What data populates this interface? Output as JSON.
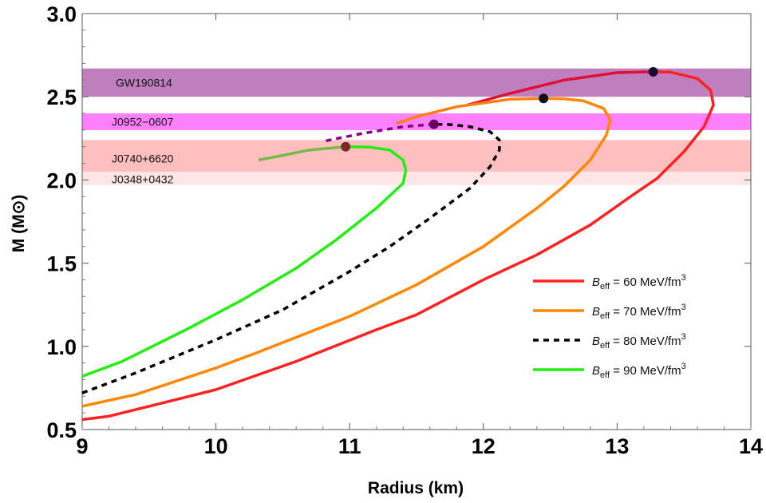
{
  "chart_data": {
    "type": "line",
    "xlabel": "Radius (km)",
    "ylabel": "M (M⊙)",
    "xlim": [
      9,
      14
    ],
    "ylim": [
      0.5,
      3.0
    ],
    "xticks": [
      9,
      10,
      11,
      12,
      13,
      14
    ],
    "xtick_labels": [
      "9",
      "10",
      "11",
      "12",
      "13",
      "14"
    ],
    "yticks": [
      0.5,
      1.0,
      1.5,
      2.0,
      2.5,
      3.0
    ],
    "ytick_labels": [
      "0.5",
      "1.0",
      "1.5",
      "2.0",
      "2.5",
      "3.0"
    ],
    "bands": [
      {
        "name": "GW190814",
        "label": "GW190814",
        "ymin": 2.5,
        "ymax": 2.67,
        "color": "#bf7fbf"
      },
      {
        "name": "J0952-0607",
        "label": "J0952−0607",
        "ymin": 2.3,
        "ymax": 2.4,
        "color": "#ff80ff"
      },
      {
        "name": "J0740+6620",
        "label": "J0740+6620",
        "ymin": 2.05,
        "ymax": 2.24,
        "color": "#ffbfbf"
      },
      {
        "name": "J0348+0432",
        "label": "J0348+0432",
        "ymin": 1.97,
        "ymax": 2.05,
        "color": "#ffe5e5"
      }
    ],
    "series": [
      {
        "name": "B_eff = 60 MeV/fm3",
        "B_eff": "60",
        "color": "#ee1111",
        "stable_color": "#ff2222",
        "unstable_color": "#dd1133",
        "dashed": false,
        "max_point": {
          "x": 13.27,
          "y": 2.65
        },
        "stable_points": [
          [
            9.0,
            0.56
          ],
          [
            9.2,
            0.58
          ],
          [
            9.6,
            0.66
          ],
          [
            10.0,
            0.74
          ],
          [
            10.6,
            0.91
          ],
          [
            11.2,
            1.1
          ],
          [
            11.5,
            1.19
          ],
          [
            12.0,
            1.4
          ],
          [
            12.4,
            1.55
          ],
          [
            12.8,
            1.73
          ],
          [
            13.1,
            1.9
          ],
          [
            13.3,
            2.01
          ],
          [
            13.5,
            2.17
          ],
          [
            13.65,
            2.32
          ],
          [
            13.72,
            2.45
          ],
          [
            13.7,
            2.54
          ],
          [
            13.6,
            2.61
          ],
          [
            13.4,
            2.648
          ],
          [
            13.27,
            2.65
          ]
        ],
        "unstable_points": [
          [
            13.27,
            2.65
          ],
          [
            13.0,
            2.645
          ],
          [
            12.6,
            2.6
          ],
          [
            12.2,
            2.52
          ],
          [
            11.88,
            2.45
          ]
        ]
      },
      {
        "name": "B_eff = 70 MeV/fm3",
        "B_eff": "70",
        "color": "#ff8800",
        "stable_color": "#ff8800",
        "unstable_color": "#ff7f0e",
        "dashed": false,
        "max_point": {
          "x": 12.45,
          "y": 2.49
        },
        "stable_points": [
          [
            9.0,
            0.64
          ],
          [
            9.4,
            0.71
          ],
          [
            10.0,
            0.87
          ],
          [
            10.3,
            0.96
          ],
          [
            11.0,
            1.18
          ],
          [
            11.5,
            1.37
          ],
          [
            12.0,
            1.6
          ],
          [
            12.4,
            1.83
          ],
          [
            12.6,
            1.96
          ],
          [
            12.8,
            2.12
          ],
          [
            12.92,
            2.27
          ],
          [
            12.95,
            2.36
          ],
          [
            12.9,
            2.43
          ],
          [
            12.75,
            2.475
          ],
          [
            12.6,
            2.488
          ],
          [
            12.45,
            2.49
          ]
        ],
        "unstable_points": [
          [
            12.45,
            2.49
          ],
          [
            12.2,
            2.485
          ],
          [
            11.8,
            2.44
          ],
          [
            11.5,
            2.38
          ],
          [
            11.35,
            2.34
          ]
        ]
      },
      {
        "name": "B_eff = 80 MeV/fm3",
        "B_eff": "80",
        "color": "#000000",
        "stable_color": "#000000",
        "unstable_color": "#880088",
        "dashed": true,
        "max_point": {
          "x": 11.63,
          "y": 2.335
        },
        "stable_points": [
          [
            9.0,
            0.72
          ],
          [
            9.4,
            0.84
          ],
          [
            10.0,
            1.04
          ],
          [
            10.5,
            1.22
          ],
          [
            11.0,
            1.45
          ],
          [
            11.3,
            1.6
          ],
          [
            11.6,
            1.77
          ],
          [
            11.9,
            1.95
          ],
          [
            12.05,
            2.08
          ],
          [
            12.12,
            2.18
          ],
          [
            12.12,
            2.24
          ],
          [
            12.05,
            2.29
          ],
          [
            11.9,
            2.32
          ],
          [
            11.75,
            2.333
          ],
          [
            11.63,
            2.335
          ]
        ],
        "unstable_points": [
          [
            11.63,
            2.335
          ],
          [
            11.4,
            2.32
          ],
          [
            11.1,
            2.28
          ],
          [
            10.82,
            2.235
          ]
        ]
      },
      {
        "name": "B_eff = 90 MeV/fm3",
        "B_eff": "90",
        "color": "#22ee11",
        "stable_color": "#22ee11",
        "unstable_color": "#77bb44",
        "dashed": false,
        "max_point": {
          "x": 10.97,
          "y": 2.2
        },
        "stable_points": [
          [
            9.0,
            0.82
          ],
          [
            9.3,
            0.91
          ],
          [
            9.8,
            1.11
          ],
          [
            10.2,
            1.28
          ],
          [
            10.6,
            1.47
          ],
          [
            10.9,
            1.64
          ],
          [
            11.2,
            1.83
          ],
          [
            11.4,
            1.98
          ],
          [
            11.42,
            2.06
          ],
          [
            11.4,
            2.12
          ],
          [
            11.3,
            2.18
          ],
          [
            11.15,
            2.197
          ],
          [
            10.97,
            2.2
          ]
        ],
        "unstable_points": [
          [
            10.97,
            2.2
          ],
          [
            10.7,
            2.18
          ],
          [
            10.45,
            2.14
          ],
          [
            10.32,
            2.12
          ]
        ]
      }
    ],
    "legend": {
      "position": "right-lower",
      "entries": [
        {
          "name": "B_eff = 60 MeV/fm3",
          "symbol": "B",
          "sub": "eff",
          "text": " = 60 MeV/fm",
          "sup": "3"
        },
        {
          "name": "B_eff = 70 MeV/fm3",
          "symbol": "B",
          "sub": "eff",
          "text": " = 70 MeV/fm",
          "sup": "3"
        },
        {
          "name": "B_eff = 80 MeV/fm3",
          "symbol": "B",
          "sub": "eff",
          "text": " = 80 MeV/fm",
          "sup": "3"
        },
        {
          "name": "B_eff = 90 MeV/fm3",
          "symbol": "B",
          "sub": "eff",
          "text": " = 90 MeV/fm",
          "sup": "3"
        }
      ]
    },
    "marker_color_dark": "#1a0a33"
  }
}
